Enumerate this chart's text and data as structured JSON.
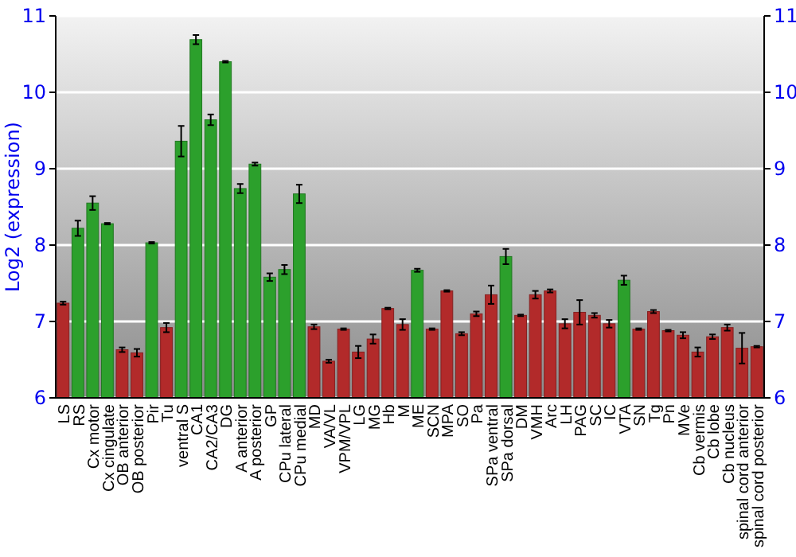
{
  "chart_data": {
    "type": "bar",
    "ylabel": "Log2 (expression)",
    "categories": [
      "LS",
      "RS",
      "Cx motor",
      "Cx cingulate",
      "OB anterior",
      "OB posterior",
      "Pir",
      "Tu",
      "ventral S",
      "CA1",
      "CA2/CA3",
      "DG",
      "A anterior",
      "A posterior",
      "GP",
      "CPu lateral",
      "CPu medial",
      "MD",
      "VA/VL",
      "VPM/VPL",
      "LG",
      "MG",
      "Hb",
      "M",
      "ME",
      "SCN",
      "MPA",
      "SO",
      "Pa",
      "SPa ventral",
      "SPa dorsal",
      "DM",
      "VMH",
      "Arc",
      "LH",
      "PAG",
      "SC",
      "IC",
      "VTA",
      "SN",
      "Tg",
      "Pn",
      "MVe",
      "Cb vermis",
      "Cb lobe",
      "Cb nucleus",
      "spinal cord anterior",
      "spinal cord posterior"
    ],
    "values": [
      7.24,
      8.22,
      8.55,
      8.28,
      6.63,
      6.59,
      8.03,
      6.92,
      9.36,
      10.69,
      9.64,
      10.4,
      8.74,
      9.06,
      7.58,
      7.68,
      8.67,
      6.93,
      6.48,
      6.9,
      6.6,
      6.77,
      7.17,
      6.96,
      7.67,
      6.9,
      7.4,
      6.84,
      7.1,
      7.35,
      7.85,
      7.08,
      7.35,
      7.4,
      6.97,
      7.12,
      7.08,
      6.97,
      7.54,
      6.9,
      7.13,
      6.88,
      6.82,
      6.6,
      6.8,
      6.92,
      6.65,
      6.67
    ],
    "errors": [
      0.02,
      0.1,
      0.09,
      0.01,
      0.03,
      0.05,
      0.01,
      0.06,
      0.2,
      0.06,
      0.07,
      0.01,
      0.06,
      0.02,
      0.05,
      0.06,
      0.12,
      0.03,
      0.02,
      0.01,
      0.08,
      0.06,
      0.01,
      0.07,
      0.02,
      0.01,
      0.01,
      0.02,
      0.03,
      0.12,
      0.1,
      0.01,
      0.05,
      0.02,
      0.06,
      0.16,
      0.03,
      0.05,
      0.06,
      0.01,
      0.02,
      0.01,
      0.04,
      0.06,
      0.03,
      0.04,
      0.2,
      0.01
    ],
    "colors": [
      "#b22a2a",
      "#2ca02c",
      "#2ca02c",
      "#2ca02c",
      "#b22a2a",
      "#b22a2a",
      "#2ca02c",
      "#b22a2a",
      "#2ca02c",
      "#2ca02c",
      "#2ca02c",
      "#2ca02c",
      "#2ca02c",
      "#2ca02c",
      "#2ca02c",
      "#2ca02c",
      "#2ca02c",
      "#b22a2a",
      "#b22a2a",
      "#b22a2a",
      "#b22a2a",
      "#b22a2a",
      "#b22a2a",
      "#b22a2a",
      "#2ca02c",
      "#b22a2a",
      "#b22a2a",
      "#b22a2a",
      "#b22a2a",
      "#b22a2a",
      "#2ca02c",
      "#b22a2a",
      "#b22a2a",
      "#b22a2a",
      "#b22a2a",
      "#b22a2a",
      "#b22a2a",
      "#b22a2a",
      "#2ca02c",
      "#b22a2a",
      "#b22a2a",
      "#b22a2a",
      "#b22a2a",
      "#b22a2a",
      "#b22a2a",
      "#b22a2a",
      "#b22a2a",
      "#b22a2a"
    ],
    "ylim": [
      6,
      11
    ],
    "yticks": [
      6,
      7,
      8,
      9,
      10,
      11
    ],
    "y2lim": [
      6,
      11
    ],
    "y2ticks": [
      6,
      7,
      8,
      9,
      10,
      11
    ],
    "grid": "y"
  }
}
